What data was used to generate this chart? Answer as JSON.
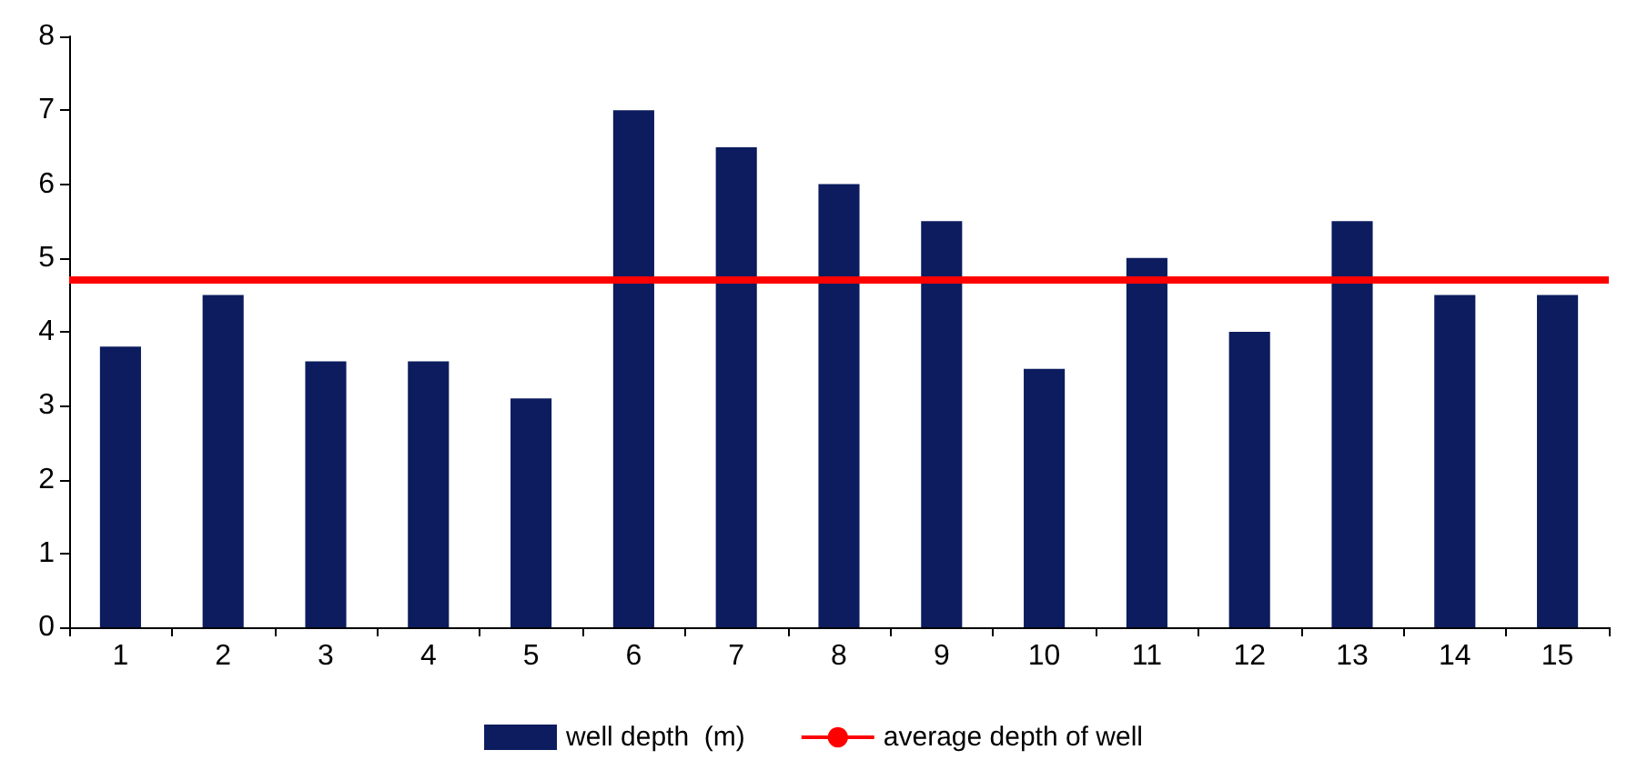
{
  "chart_data": {
    "type": "bar",
    "categories": [
      "1",
      "2",
      "3",
      "4",
      "5",
      "6",
      "7",
      "8",
      "9",
      "10",
      "11",
      "12",
      "13",
      "14",
      "15"
    ],
    "series": [
      {
        "name": "well depth  (m)",
        "color": "#0c1c5e",
        "values": [
          3.8,
          4.5,
          3.6,
          3.6,
          3.1,
          7.0,
          6.5,
          6.0,
          5.5,
          3.5,
          5.0,
          4.0,
          5.5,
          4.5,
          4.5
        ]
      }
    ],
    "ref_lines": [
      {
        "axis": "y",
        "value": 4.7,
        "label": "average depth of well",
        "color": "#ff0000",
        "line_style": "solid"
      }
    ],
    "ylim": [
      0,
      8
    ],
    "yticks": [
      0,
      1,
      2,
      3,
      4,
      5,
      6,
      7,
      8
    ],
    "grid": false,
    "legend": "bottom"
  }
}
